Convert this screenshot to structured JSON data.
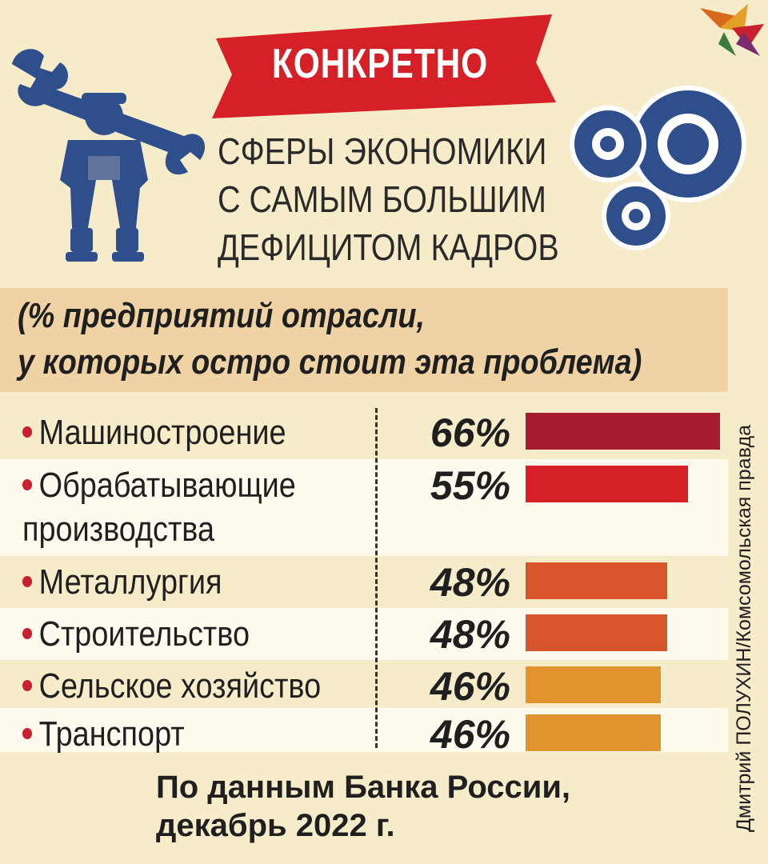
{
  "header": {
    "badge": "КОНКРЕТНО",
    "title_lines": [
      "СФЕРЫ ЭКОНОМИКИ",
      "С САМЫМ БОЛЬШИМ",
      "ДЕФИЦИТОМ КАДРОВ"
    ],
    "subtitle_lines": [
      "(% предприятий отрасли,",
      "у которых остро стоит эта проблема)"
    ]
  },
  "chart_data": {
    "type": "bar",
    "orientation": "horizontal",
    "categories": [
      [
        "Машиностроение"
      ],
      [
        "Обрабатывающие",
        "производства"
      ],
      [
        "Металлургия"
      ],
      [
        "Строительство"
      ],
      [
        "Сельское хозяйство"
      ],
      [
        "Транспорт"
      ]
    ],
    "values": [
      66,
      55,
      48,
      48,
      46,
      46
    ],
    "labels": [
      "66%",
      "55%",
      "48%",
      "48%",
      "46%",
      "46%"
    ],
    "bar_colors": [
      "#a61c2e",
      "#d42026",
      "#d8542b",
      "#d8542b",
      "#e2952f",
      "#e2952f"
    ],
    "xlim": [
      0,
      66
    ]
  },
  "footer": {
    "source_lines": [
      "По данным Банка России,",
      "декабрь 2022 г."
    ],
    "credit": "Дмитрий ПОЛУХИН/Комсомольская правда"
  },
  "colors": {
    "background": "#f7ecc9",
    "band": "#f0d3a4",
    "ribbon": "#d42026",
    "icon_blue": "#2f4e8c"
  }
}
